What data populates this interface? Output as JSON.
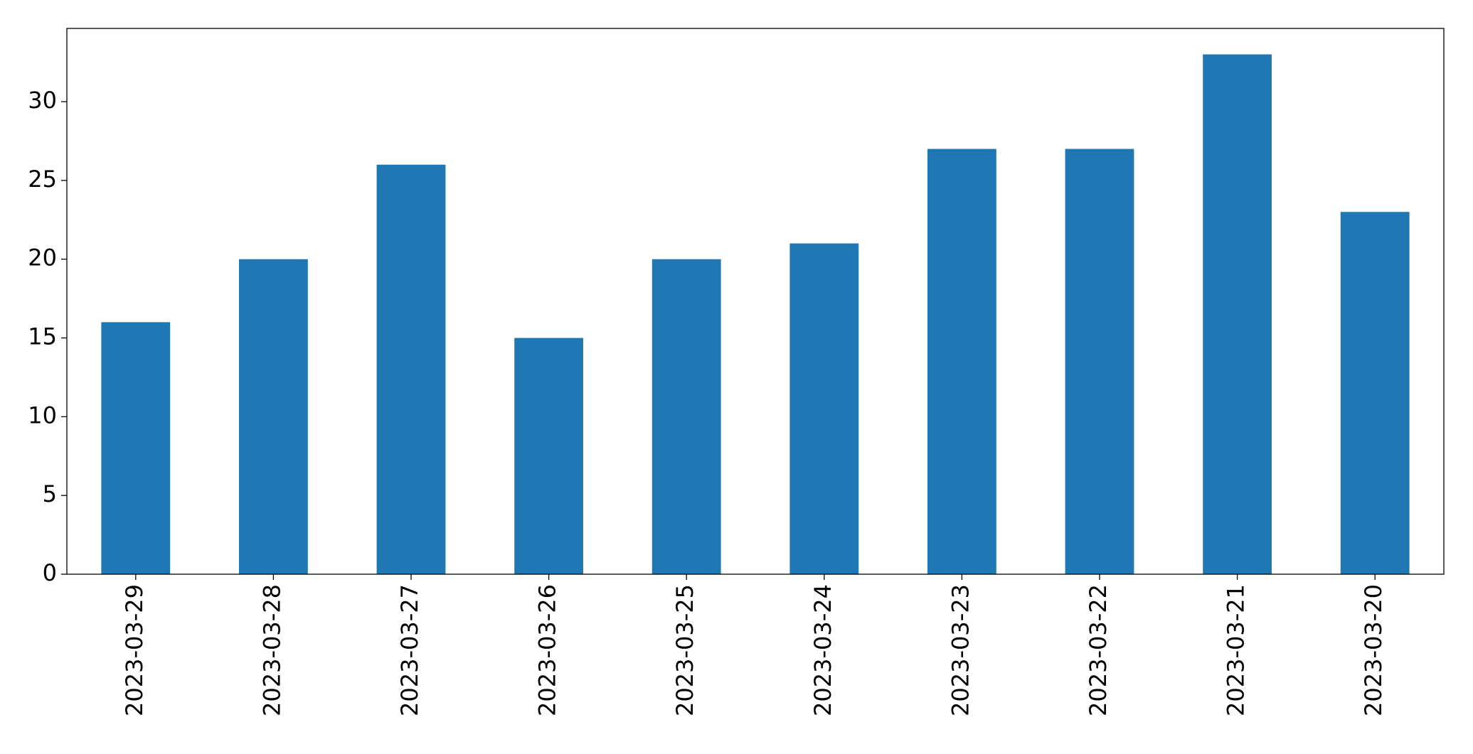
{
  "chart_data": {
    "type": "bar",
    "categories": [
      "2023-03-29",
      "2023-03-28",
      "2023-03-27",
      "2023-03-26",
      "2023-03-25",
      "2023-03-24",
      "2023-03-23",
      "2023-03-22",
      "2023-03-21",
      "2023-03-20"
    ],
    "values": [
      16,
      20,
      26,
      15,
      20,
      21,
      27,
      27,
      33,
      23
    ],
    "color": "#1f77b4",
    "ylim": [
      0,
      34.65
    ],
    "yticks": [
      0,
      5,
      10,
      15,
      20,
      25,
      30
    ],
    "grid": false
  }
}
